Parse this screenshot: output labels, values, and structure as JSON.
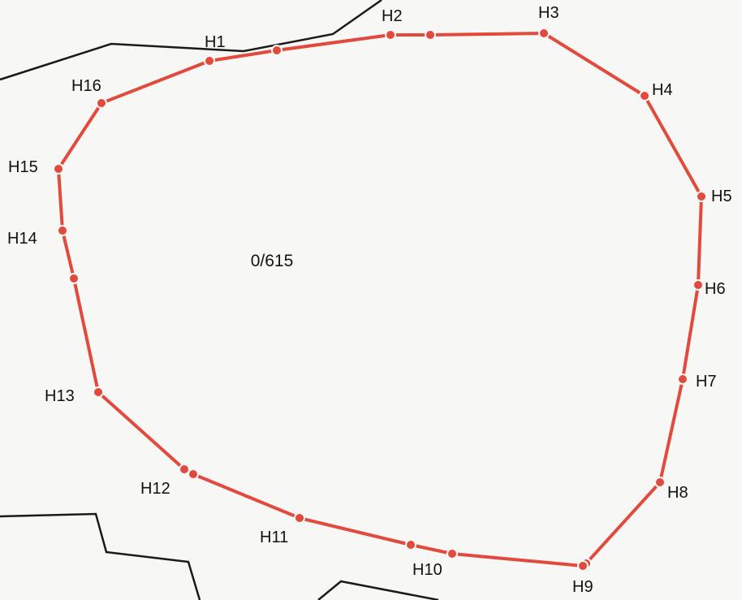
{
  "map": {
    "parcel_number": "0/615",
    "boundary_color": "#e14a3c",
    "marker_color": "#e14a3c",
    "line_color": "#1a1a1a",
    "points": [
      {
        "id": "H1",
        "label": "H1"
      },
      {
        "id": "H2",
        "label": "H2"
      },
      {
        "id": "H3",
        "label": "H3"
      },
      {
        "id": "H4",
        "label": "H4"
      },
      {
        "id": "H5",
        "label": "H5"
      },
      {
        "id": "H6",
        "label": "H6"
      },
      {
        "id": "H7",
        "label": "H7"
      },
      {
        "id": "H8",
        "label": "H8"
      },
      {
        "id": "H9",
        "label": "H9"
      },
      {
        "id": "H10",
        "label": "H10"
      },
      {
        "id": "H11",
        "label": "H11"
      },
      {
        "id": "H12",
        "label": "H12"
      },
      {
        "id": "H13",
        "label": "H13"
      },
      {
        "id": "H14",
        "label": "H14"
      },
      {
        "id": "H15",
        "label": "H15"
      },
      {
        "id": "H16",
        "label": "H16"
      }
    ]
  }
}
